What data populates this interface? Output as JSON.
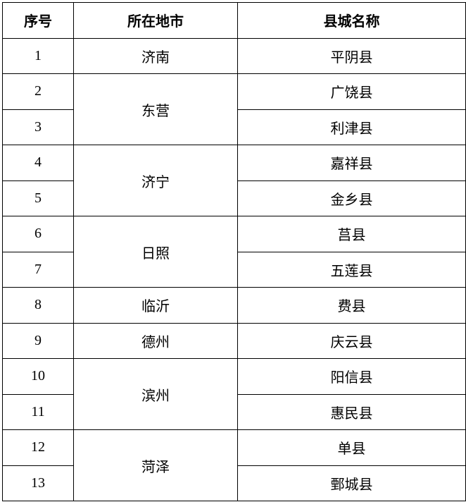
{
  "headers": [
    "序号",
    "所在地市",
    "县城名称"
  ],
  "rows": [
    {
      "no": "1",
      "city": "济南",
      "city_span": 1,
      "county": "平阴县"
    },
    {
      "no": "2",
      "city": "东营",
      "city_span": 2,
      "county": "广饶县"
    },
    {
      "no": "3",
      "city": null,
      "county": "利津县"
    },
    {
      "no": "4",
      "city": "济宁",
      "city_span": 2,
      "county": "嘉祥县"
    },
    {
      "no": "5",
      "city": null,
      "county": "金乡县"
    },
    {
      "no": "6",
      "city": "日照",
      "city_span": 2,
      "county": "莒县"
    },
    {
      "no": "7",
      "city": null,
      "county": "五莲县"
    },
    {
      "no": "8",
      "city": "临沂",
      "city_span": 1,
      "county": "费县"
    },
    {
      "no": "9",
      "city": "德州",
      "city_span": 1,
      "county": "庆云县"
    },
    {
      "no": "10",
      "city": "滨州",
      "city_span": 2,
      "county": "阳信县"
    },
    {
      "no": "11",
      "city": null,
      "county": "惠民县"
    },
    {
      "no": "12",
      "city": "菏泽",
      "city_span": 2,
      "county": "单县"
    },
    {
      "no": "13",
      "city": null,
      "county": "鄄城县"
    }
  ]
}
